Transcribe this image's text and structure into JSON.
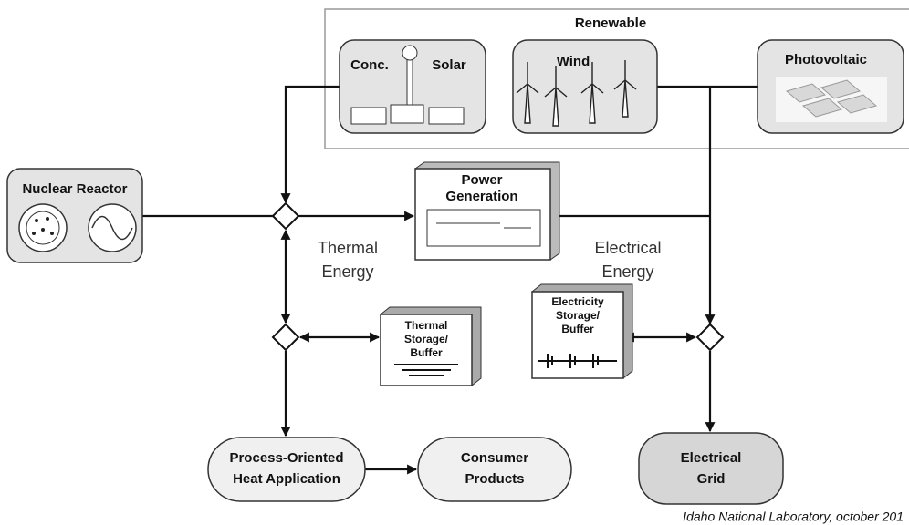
{
  "group": {
    "label": "Renewable"
  },
  "nodes": [
    {
      "lines": [
        "Conc.",
        "Solar"
      ]
    },
    {
      "lines": [
        "Wind"
      ]
    },
    {
      "lines": [
        "Photovoltaic"
      ]
    },
    {
      "lines": [
        "Nuclear Reactor"
      ]
    },
    {
      "lines": [
        "Power",
        "Generation"
      ]
    },
    {
      "lines": [
        "Thermal",
        "Storage/",
        "Buffer"
      ]
    },
    {
      "lines": [
        "Electricity",
        "Storage/",
        "Buffer"
      ]
    },
    {
      "lines": [
        "Process-Oriented",
        "Heat Application"
      ]
    },
    {
      "lines": [
        "Consumer",
        "Products"
      ]
    },
    {
      "lines": [
        "Electrical",
        "Grid"
      ]
    }
  ],
  "flow_labels": [
    {
      "lines": [
        "Thermal",
        "Energy"
      ]
    },
    {
      "lines": [
        "Electrical",
        "Energy"
      ]
    }
  ],
  "footer": "Idaho National Laboratory, october 201"
}
